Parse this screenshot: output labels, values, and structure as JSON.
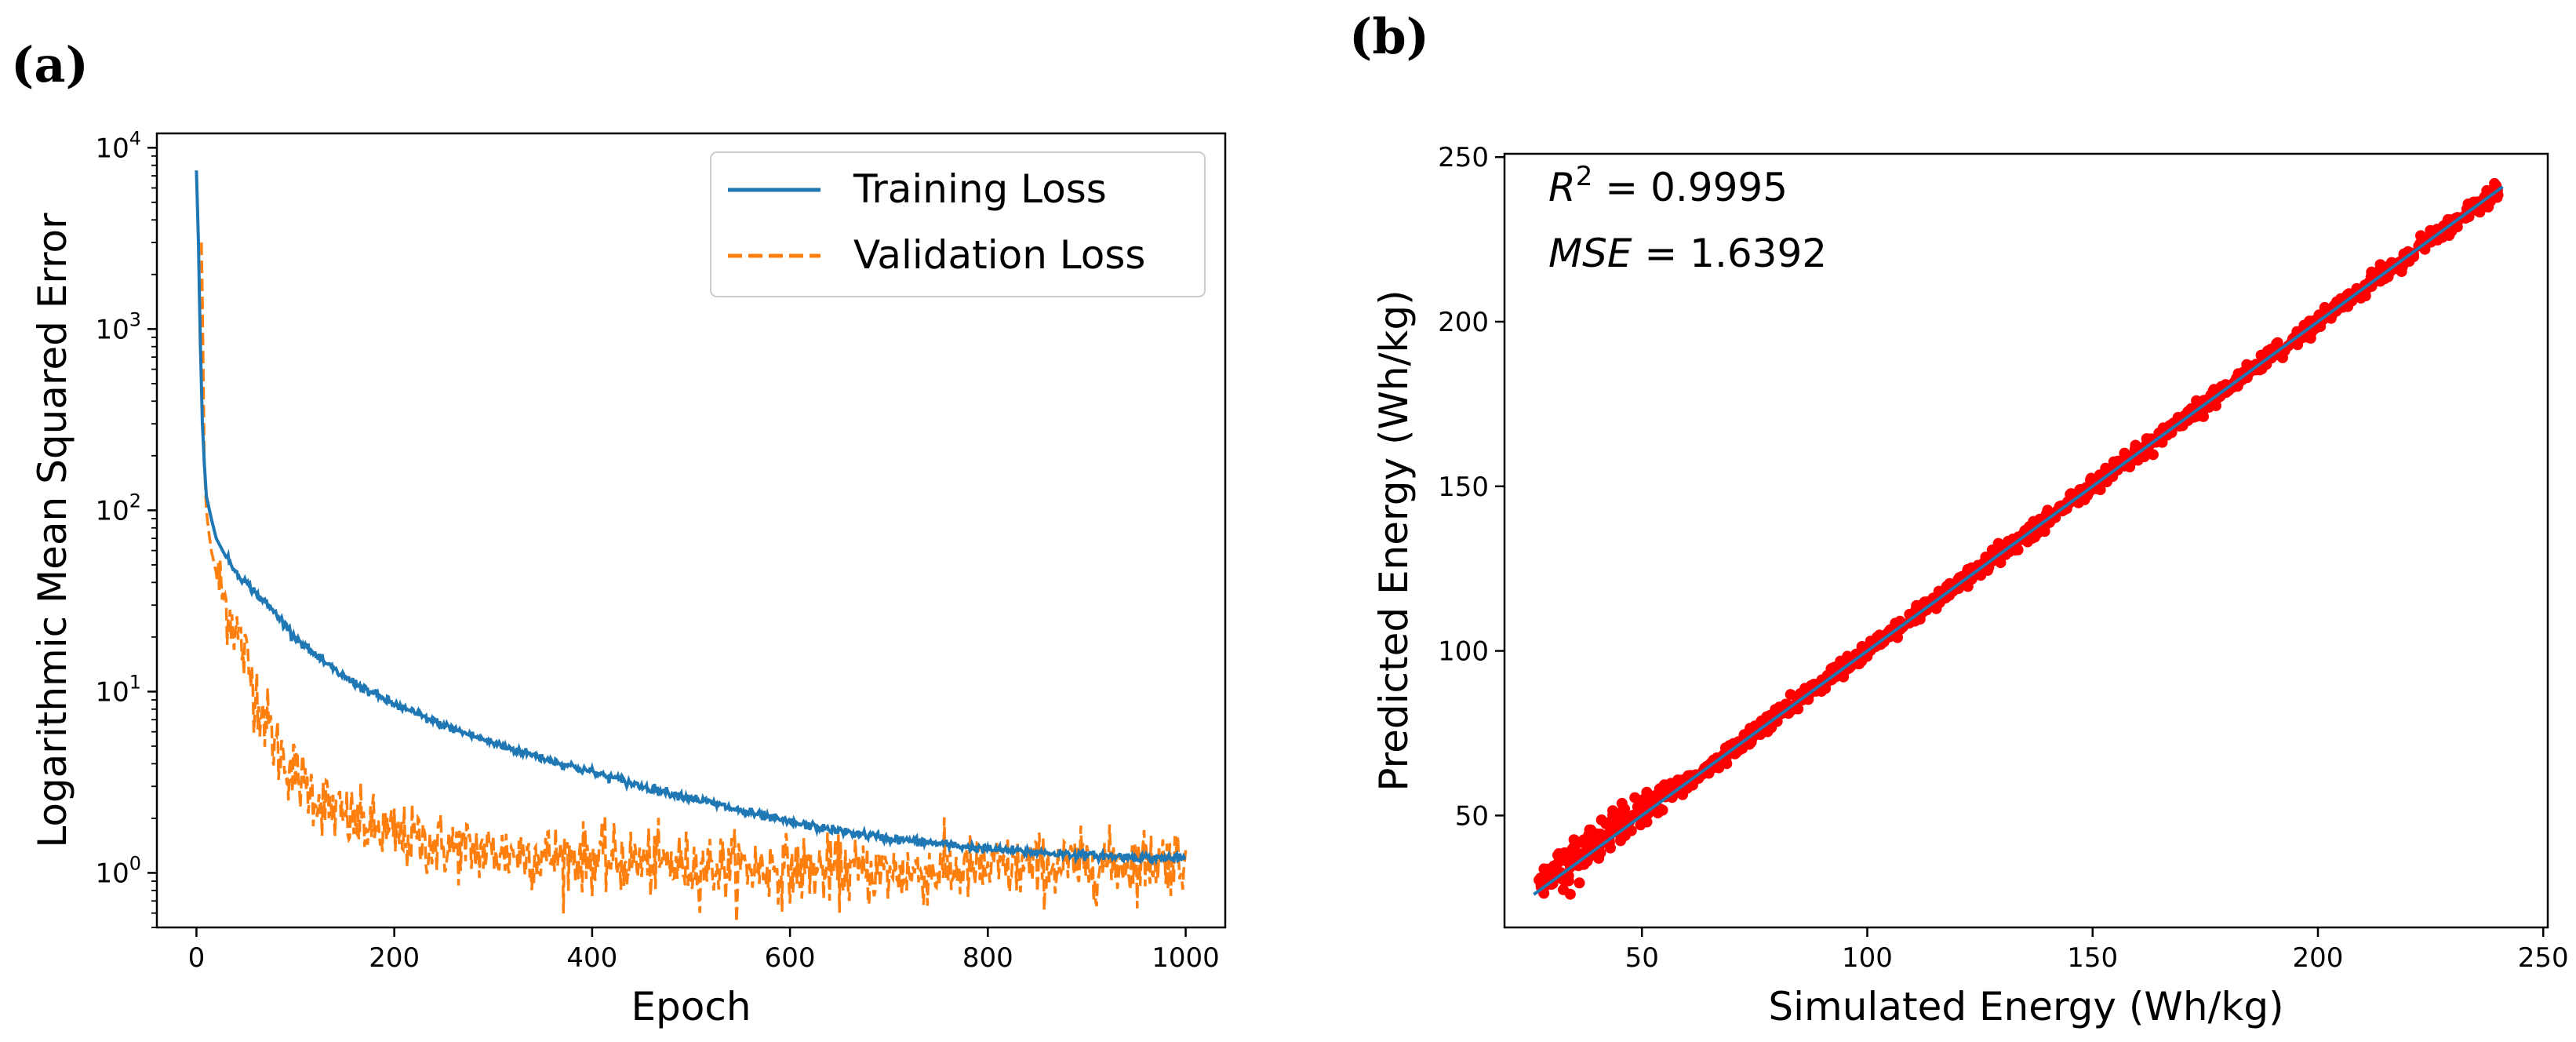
{
  "chart_data": [
    {
      "panel": "(a)",
      "type": "line",
      "title": "",
      "xlabel": "Epoch",
      "ylabel": "Logarithmic Mean Squared Error",
      "yscale": "log",
      "xlim": [
        -40,
        1040
      ],
      "ylim": [
        0.5,
        12000
      ],
      "xticks": [
        0,
        200,
        400,
        600,
        800,
        1000
      ],
      "yticks": [
        1,
        10,
        100,
        1000,
        10000
      ],
      "ytick_labels": [
        {
          "base": "10",
          "exp": "0"
        },
        {
          "base": "10",
          "exp": "1"
        },
        {
          "base": "10",
          "exp": "2"
        },
        {
          "base": "10",
          "exp": "3"
        },
        {
          "base": "10",
          "exp": "4"
        }
      ],
      "legend_position": "top-right",
      "series": [
        {
          "name": "Training Loss",
          "color": "#1f77b4",
          "style": "solid",
          "x": [
            0,
            2,
            4,
            6,
            8,
            10,
            15,
            20,
            30,
            40,
            50,
            60,
            80,
            100,
            125,
            150,
            175,
            200,
            250,
            300,
            350,
            400,
            450,
            500,
            550,
            600,
            650,
            700,
            750,
            800,
            850,
            900,
            950,
            1000
          ],
          "y": [
            7500,
            3000,
            800,
            300,
            180,
            120,
            90,
            70,
            55,
            46,
            40,
            35,
            27,
            20,
            15,
            12,
            10,
            8.5,
            6.5,
            5.2,
            4.3,
            3.6,
            3.0,
            2.6,
            2.2,
            1.9,
            1.7,
            1.55,
            1.45,
            1.35,
            1.3,
            1.25,
            1.22,
            1.2
          ]
        },
        {
          "name": "Validation Loss",
          "color": "#ff7f0e",
          "style": "dashed",
          "x": [
            5,
            6,
            7,
            8,
            10,
            12,
            15,
            20,
            30,
            40,
            50,
            60,
            70,
            80,
            100,
            125,
            150,
            200,
            250,
            300,
            400,
            500,
            600,
            700,
            800,
            900,
            1000
          ],
          "y": [
            3000,
            1500,
            500,
            180,
            100,
            80,
            60,
            45,
            30,
            22,
            15,
            10,
            7,
            5,
            3.5,
            2.5,
            2.0,
            1.6,
            1.4,
            1.3,
            1.2,
            1.1,
            1.05,
            1.0,
            1.05,
            1.1,
            1.2
          ]
        }
      ]
    },
    {
      "panel": "(b)",
      "type": "scatter",
      "title": "",
      "xlabel": "Simulated Energy (Wh/kg)",
      "ylabel": "Predicted Energy (Wh/kg)",
      "xlim": [
        19.5,
        251
      ],
      "ylim": [
        16,
        251
      ],
      "xticks": [
        50,
        100,
        150,
        200,
        250
      ],
      "yticks": [
        50,
        100,
        150,
        200,
        250
      ],
      "annotations": [
        {
          "label": "R",
          "sup": "2",
          "text": " = 0.9995"
        },
        {
          "label": "MSE",
          "text": " = 1.6392"
        }
      ],
      "point_color": "#ff0000",
      "fit_line_color": "#1f77b4",
      "fit_line": {
        "x": [
          26,
          241
        ],
        "y": [
          26,
          241
        ]
      },
      "points_range": [
        27,
        240
      ],
      "n_points": 1200,
      "noise_sd": 1.3
    }
  ]
}
